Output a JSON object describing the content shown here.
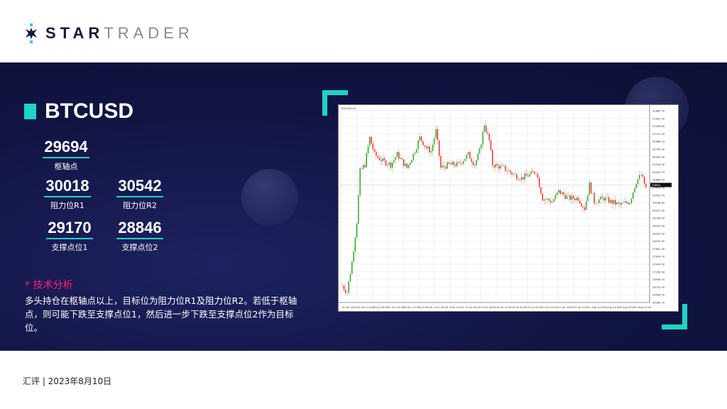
{
  "brand": {
    "part1": "STAR",
    "part2": "TRADER"
  },
  "symbol": "BTCUSD",
  "levels": {
    "pivot": {
      "value": "29694",
      "label": "枢轴点"
    },
    "r1": {
      "value": "30018",
      "label": "阻力位R1"
    },
    "r2": {
      "value": "30542",
      "label": "阻力位R2"
    },
    "s1": {
      "value": "29170",
      "label": "支撑点位1"
    },
    "s2": {
      "value": "28846",
      "label": "支撑点位2"
    }
  },
  "analysis": {
    "title": "* 技术分析",
    "body": "多头持仓在枢轴点以上，目标位为阻力位R1及阻力位R2。若低于枢轴点，则可能下跌至支撑点位1，然后进一步下跌至支撑点位2作为目标位。"
  },
  "footer": "汇评 | 2023年8月10日",
  "colors": {
    "accent": "#1fd3c6",
    "highlight": "#ff1f7a",
    "bull": "#1a9e1a",
    "bear": "#ff1a1a",
    "background": "#111442"
  },
  "chart_data": {
    "type": "candlestick",
    "title": "BTCUSD,H4",
    "ylim": [
      26200,
      31900
    ],
    "grid": true,
    "last_price": "29694",
    "approx_close_path": [
      [
        0,
        26700
      ],
      [
        3,
        26500
      ],
      [
        6,
        27400
      ],
      [
        9,
        28600
      ],
      [
        11,
        30100
      ],
      [
        14,
        30300
      ],
      [
        17,
        31100
      ],
      [
        20,
        30600
      ],
      [
        25,
        30400
      ],
      [
        30,
        30300
      ],
      [
        34,
        30600
      ],
      [
        40,
        30200
      ],
      [
        44,
        30600
      ],
      [
        48,
        31100
      ],
      [
        52,
        30800
      ],
      [
        55,
        30700
      ],
      [
        58,
        31300
      ],
      [
        61,
        30200
      ],
      [
        66,
        30300
      ],
      [
        72,
        30300
      ],
      [
        78,
        30600
      ],
      [
        82,
        30300
      ],
      [
        85,
        30700
      ],
      [
        88,
        31500
      ],
      [
        91,
        31000
      ],
      [
        93,
        30300
      ],
      [
        100,
        30200
      ],
      [
        106,
        30000
      ],
      [
        111,
        29900
      ],
      [
        116,
        30000
      ],
      [
        120,
        30100
      ],
      [
        124,
        29300
      ],
      [
        130,
        29200
      ],
      [
        134,
        29500
      ],
      [
        140,
        29300
      ],
      [
        146,
        29300
      ],
      [
        150,
        29000
      ],
      [
        153,
        29700
      ],
      [
        156,
        29200
      ],
      [
        162,
        29300
      ],
      [
        166,
        29200
      ],
      [
        172,
        29100
      ],
      [
        178,
        29200
      ],
      [
        182,
        29800
      ],
      [
        185,
        30000
      ],
      [
        188,
        29600
      ]
    ],
    "y_ticks": [
      "31885.70",
      "31561.50",
      "31436.50",
      "31212.50",
      "30988.10",
      "30764.30",
      "30540.50",
      "30316.50",
      "30092.70",
      "29868.50",
      "29644.50",
      "29420.70",
      "29196.50",
      "28972.50",
      "28748.50",
      "28524.50",
      "28300.50",
      "28076.50",
      "27852.50",
      "27628.70",
      "27404.50",
      "27180.50",
      "26956.70",
      "26732.50",
      "26508.50",
      "26284.70"
    ],
    "x_ticks": [
      "19 Jun 2023",
      "22 Jun 12:00",
      "26 Jun 04:00",
      "27 Jun 20:00",
      "30 Jun 12:00",
      "3 Jul 04:00",
      "5 Jul 20:00",
      "8 Jul 12:00",
      "11 Jul 04:00",
      "13 Jul 20:00",
      "16 Jul 12:00",
      "19 Jul 04:00",
      "21 Jul 20:00",
      "24 Jul 12:00",
      "27 Jul 04:00",
      "29 Jul 20:00",
      "1 Aug 12:00",
      "4 Aug 04:00",
      "6 Aug 20:00",
      "9 Aug 12:00"
    ]
  }
}
